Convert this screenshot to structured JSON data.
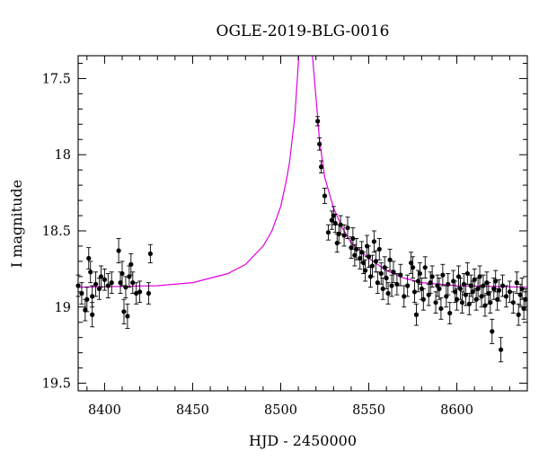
{
  "chart_data": {
    "type": "scatter",
    "title": "OGLE-2019-BLG-0016",
    "xlabel": "HJD - 2450000",
    "ylabel": "I magnitude",
    "xlim": [
      8385,
      8640
    ],
    "ylim": [
      19.55,
      17.35
    ],
    "y_inverted": true,
    "xticks": [
      8400,
      8450,
      8500,
      8550,
      8600
    ],
    "xtick_labels": [
      "8400",
      "8450",
      "8500",
      "8550",
      "8600"
    ],
    "yticks": [
      17.5,
      18,
      18.5,
      19,
      19.5
    ],
    "ytick_labels": [
      "17.5",
      "18",
      "18.5",
      "19",
      "19.5"
    ],
    "grid": false,
    "colors": {
      "data": "#000000",
      "model": "#e000e0"
    },
    "model": {
      "name": "",
      "t0": 8514,
      "baseline": 18.87,
      "curve": [
        [
          8385,
          18.87
        ],
        [
          8430,
          18.86
        ],
        [
          8450,
          18.84
        ],
        [
          8470,
          18.78
        ],
        [
          8480,
          18.72
        ],
        [
          8490,
          18.6
        ],
        [
          8495,
          18.5
        ],
        [
          8500,
          18.34
        ],
        [
          8503,
          18.18
        ],
        [
          8505,
          18.05
        ],
        [
          8508,
          17.75
        ],
        [
          8510,
          17.4
        ],
        [
          8511,
          17.1
        ],
        [
          8517,
          17.1
        ],
        [
          8518,
          17.35
        ],
        [
          8520,
          17.62
        ],
        [
          8522,
          17.9
        ],
        [
          8525,
          18.15
        ],
        [
          8530,
          18.35
        ],
        [
          8535,
          18.48
        ],
        [
          8540,
          18.58
        ],
        [
          8550,
          18.68
        ],
        [
          8560,
          18.76
        ],
        [
          8570,
          18.81
        ],
        [
          8580,
          18.84
        ],
        [
          8600,
          18.86
        ],
        [
          8640,
          18.87
        ]
      ]
    },
    "series": [
      {
        "name": "",
        "points": [
          [
            8385,
            18.86,
            0.07
          ],
          [
            8387,
            18.91,
            0.07
          ],
          [
            8389,
            19.02,
            0.07
          ],
          [
            8390,
            18.95,
            0.08
          ],
          [
            8391,
            18.68,
            0.07
          ],
          [
            8392,
            18.77,
            0.07
          ],
          [
            8393,
            18.93,
            0.07
          ],
          [
            8393,
            19.05,
            0.08
          ],
          [
            8395,
            18.85,
            0.08
          ],
          [
            8397,
            18.88,
            0.07
          ],
          [
            8398,
            18.8,
            0.07
          ],
          [
            8400,
            18.82,
            0.07
          ],
          [
            8402,
            18.86,
            0.08
          ],
          [
            8404,
            18.84,
            0.07
          ],
          [
            8408,
            18.63,
            0.08
          ],
          [
            8409,
            18.84,
            0.07
          ],
          [
            8410,
            18.78,
            0.08
          ],
          [
            8411,
            19.03,
            0.08
          ],
          [
            8412,
            18.87,
            0.07
          ],
          [
            8413,
            19.06,
            0.08
          ],
          [
            8414,
            18.8,
            0.07
          ],
          [
            8415,
            18.72,
            0.07
          ],
          [
            8416,
            18.84,
            0.07
          ],
          [
            8418,
            18.91,
            0.07
          ],
          [
            8420,
            18.9,
            0.07
          ],
          [
            8425,
            18.91,
            0.07
          ],
          [
            8426,
            18.65,
            0.06
          ],
          [
            8521,
            17.78,
            0.03
          ],
          [
            8522,
            17.93,
            0.04
          ],
          [
            8523,
            18.08,
            0.04
          ],
          [
            8525,
            18.27,
            0.05
          ],
          [
            8527,
            18.51,
            0.05
          ],
          [
            8529,
            18.43,
            0.06
          ],
          [
            8530,
            18.4,
            0.06
          ],
          [
            8531,
            18.45,
            0.06
          ],
          [
            8532,
            18.58,
            0.06
          ],
          [
            8533,
            18.52,
            0.06
          ],
          [
            8534,
            18.46,
            0.06
          ],
          [
            8536,
            18.53,
            0.07
          ],
          [
            8538,
            18.48,
            0.07
          ],
          [
            8540,
            18.61,
            0.07
          ],
          [
            8541,
            18.55,
            0.07
          ],
          [
            8542,
            18.66,
            0.07
          ],
          [
            8543,
            18.62,
            0.07
          ],
          [
            8545,
            18.68,
            0.07
          ],
          [
            8546,
            18.64,
            0.07
          ],
          [
            8547,
            18.71,
            0.07
          ],
          [
            8548,
            18.76,
            0.07
          ],
          [
            8549,
            18.6,
            0.07
          ],
          [
            8550,
            18.67,
            0.07
          ],
          [
            8551,
            18.8,
            0.07
          ],
          [
            8552,
            18.73,
            0.07
          ],
          [
            8553,
            18.57,
            0.07
          ],
          [
            8554,
            18.7,
            0.07
          ],
          [
            8555,
            18.84,
            0.07
          ],
          [
            8556,
            18.62,
            0.07
          ],
          [
            8557,
            18.78,
            0.07
          ],
          [
            8558,
            18.88,
            0.07
          ],
          [
            8559,
            18.74,
            0.07
          ],
          [
            8560,
            18.81,
            0.07
          ],
          [
            8561,
            18.91,
            0.07
          ],
          [
            8562,
            18.69,
            0.07
          ],
          [
            8563,
            18.86,
            0.07
          ],
          [
            8564,
            18.77,
            0.07
          ],
          [
            8566,
            18.85,
            0.07
          ],
          [
            8568,
            18.79,
            0.07
          ],
          [
            8570,
            18.93,
            0.07
          ],
          [
            8572,
            18.86,
            0.07
          ],
          [
            8574,
            18.71,
            0.07
          ],
          [
            8575,
            18.74,
            0.07
          ],
          [
            8576,
            18.9,
            0.07
          ],
          [
            8577,
            19.05,
            0.07
          ],
          [
            8578,
            18.83,
            0.07
          ],
          [
            8579,
            18.78,
            0.07
          ],
          [
            8580,
            18.88,
            0.07
          ],
          [
            8581,
            18.95,
            0.07
          ],
          [
            8582,
            18.74,
            0.07
          ],
          [
            8584,
            18.92,
            0.07
          ],
          [
            8585,
            18.84,
            0.07
          ],
          [
            8586,
            18.8,
            0.07
          ],
          [
            8588,
            18.97,
            0.07
          ],
          [
            8589,
            18.86,
            0.07
          ],
          [
            8590,
            18.88,
            0.07
          ],
          [
            8591,
            19.01,
            0.07
          ],
          [
            8592,
            18.79,
            0.07
          ],
          [
            8594,
            18.93,
            0.07
          ],
          [
            8595,
            18.85,
            0.07
          ],
          [
            8596,
            19.04,
            0.07
          ],
          [
            8598,
            18.83,
            0.07
          ],
          [
            8599,
            18.9,
            0.07
          ],
          [
            8600,
            18.95,
            0.07
          ],
          [
            8601,
            18.8,
            0.07
          ],
          [
            8602,
            18.88,
            0.07
          ],
          [
            8603,
            18.97,
            0.07
          ],
          [
            8604,
            18.85,
            0.07
          ],
          [
            8605,
            18.92,
            0.07
          ],
          [
            8606,
            18.78,
            0.07
          ],
          [
            8607,
            18.98,
            0.07
          ],
          [
            8608,
            18.86,
            0.07
          ],
          [
            8609,
            18.9,
            0.07
          ],
          [
            8610,
            18.82,
            0.07
          ],
          [
            8611,
            18.95,
            0.07
          ],
          [
            8612,
            18.88,
            0.07
          ],
          [
            8613,
            18.8,
            0.07
          ],
          [
            8614,
            18.93,
            0.07
          ],
          [
            8615,
            18.86,
            0.07
          ],
          [
            8616,
            18.99,
            0.07
          ],
          [
            8617,
            18.84,
            0.07
          ],
          [
            8618,
            18.91,
            0.07
          ],
          [
            8619,
            18.97,
            0.07
          ],
          [
            8620,
            19.16,
            0.08
          ],
          [
            8621,
            18.88,
            0.07
          ],
          [
            8622,
            18.83,
            0.07
          ],
          [
            8623,
            18.95,
            0.07
          ],
          [
            8624,
            18.89,
            0.07
          ],
          [
            8625,
            19.28,
            0.08
          ],
          [
            8626,
            18.86,
            0.07
          ],
          [
            8628,
            18.93,
            0.07
          ],
          [
            8630,
            18.9,
            0.07
          ],
          [
            8632,
            18.97,
            0.07
          ],
          [
            8634,
            18.84,
            0.07
          ],
          [
            8635,
            19.05,
            0.07
          ],
          [
            8636,
            18.92,
            0.07
          ],
          [
            8637,
            18.88,
            0.07
          ],
          [
            8638,
            19.01,
            0.07
          ],
          [
            8639,
            18.95,
            0.07
          ]
        ]
      }
    ]
  }
}
